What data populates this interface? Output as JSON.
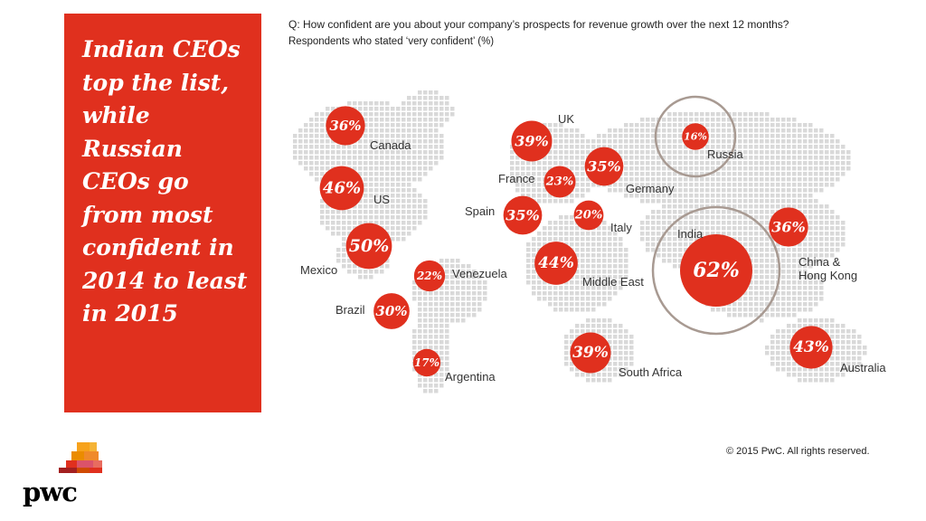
{
  "headline": "Indian CEOs top the list, while Russian CEOs go from most confident in 2014 to least in 2015",
  "question": "Q: How confident are you about your company’s prospects for revenue growth over the next 12 months?",
  "subtitle": "Respondents who stated ‘very confident’  (%)",
  "copyright": "© 2015 PwC. All rights reserved.",
  "logo_text": "pwc",
  "colors": {
    "accent": "#e0301e",
    "map_dots": "#d9d9d9",
    "ring": "#a89a92"
  },
  "bubbles": [
    {
      "country": "Canada",
      "value": 36,
      "label": "36%"
    },
    {
      "country": "US",
      "value": 46,
      "label": "46%"
    },
    {
      "country": "Mexico",
      "value": 50,
      "label": "50%"
    },
    {
      "country": "Venezuela",
      "value": 22,
      "label": "22%"
    },
    {
      "country": "Brazil",
      "value": 30,
      "label": "30%"
    },
    {
      "country": "Argentina",
      "value": 17,
      "label": "17%"
    },
    {
      "country": "UK",
      "value": 39,
      "label": "39%"
    },
    {
      "country": "France",
      "value": 23,
      "label": "23%"
    },
    {
      "country": "Germany",
      "value": 35,
      "label": "35%"
    },
    {
      "country": "Spain",
      "value": 35,
      "label": "35%"
    },
    {
      "country": "Italy",
      "value": 20,
      "label": "20%"
    },
    {
      "country": "Middle East",
      "value": 44,
      "label": "44%"
    },
    {
      "country": "South Africa",
      "value": 39,
      "label": "39%"
    },
    {
      "country": "Russia",
      "value": 16,
      "label": "16%",
      "highlight": true
    },
    {
      "country": "India",
      "value": 62,
      "label": "62%",
      "highlight": true
    },
    {
      "country": "China & Hong Kong",
      "label_line1": "China &",
      "label_line2": "Hong Kong",
      "value": 36,
      "label": "36%"
    },
    {
      "country": "Australia",
      "value": 43,
      "label": "43%"
    }
  ]
}
